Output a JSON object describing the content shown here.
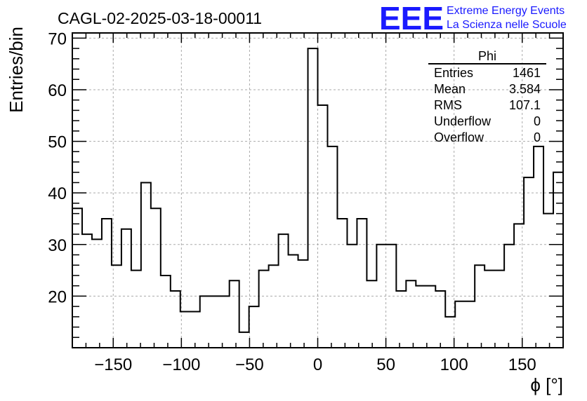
{
  "title": "CAGL-02-2025-03-18-00011",
  "logo": {
    "mark": "EEE",
    "line1": "Extreme Energy Events",
    "line2": "La Scienza nelle Scuole",
    "color": "#1a1aff"
  },
  "stats": {
    "name": "Phi",
    "rows": [
      {
        "label": "Entries",
        "value": "1461"
      },
      {
        "label": "Mean",
        "value": "3.584"
      },
      {
        "label": "RMS",
        "value": "107.1"
      },
      {
        "label": "Underflow",
        "value": "0"
      },
      {
        "label": "Overflow",
        "value": "0"
      }
    ]
  },
  "chart_data": {
    "type": "histogram",
    "title": "CAGL-02-2025-03-18-00011",
    "xlabel": "ϕ [°]",
    "ylabel": "Entries/bin",
    "xlim": [
      -180,
      180
    ],
    "ylim": [
      10,
      71
    ],
    "grid": true,
    "bin_width": 7.2,
    "x_ticks": [
      -150,
      -100,
      -50,
      0,
      50,
      100,
      150
    ],
    "x_tick_labels": [
      "−150",
      "−100",
      "−50",
      "0",
      "50",
      "100",
      "150"
    ],
    "y_ticks": [
      20,
      30,
      40,
      50,
      60,
      70
    ],
    "y_tick_labels": [
      "20",
      "30",
      "40",
      "50",
      "60",
      "70"
    ],
    "bin_edges_start": -180,
    "counts": [
      37,
      32,
      31,
      35,
      26,
      33,
      25,
      42,
      37,
      24,
      21,
      17,
      17,
      20,
      20,
      20,
      23,
      13,
      18,
      25,
      26,
      32,
      28,
      27,
      68,
      57,
      49,
      35,
      30,
      35,
      23,
      30,
      30,
      21,
      23,
      22,
      22,
      21,
      16,
      19,
      19,
      26,
      25,
      25,
      30,
      34,
      43,
      49,
      36,
      44
    ],
    "line_color": "#000000"
  }
}
